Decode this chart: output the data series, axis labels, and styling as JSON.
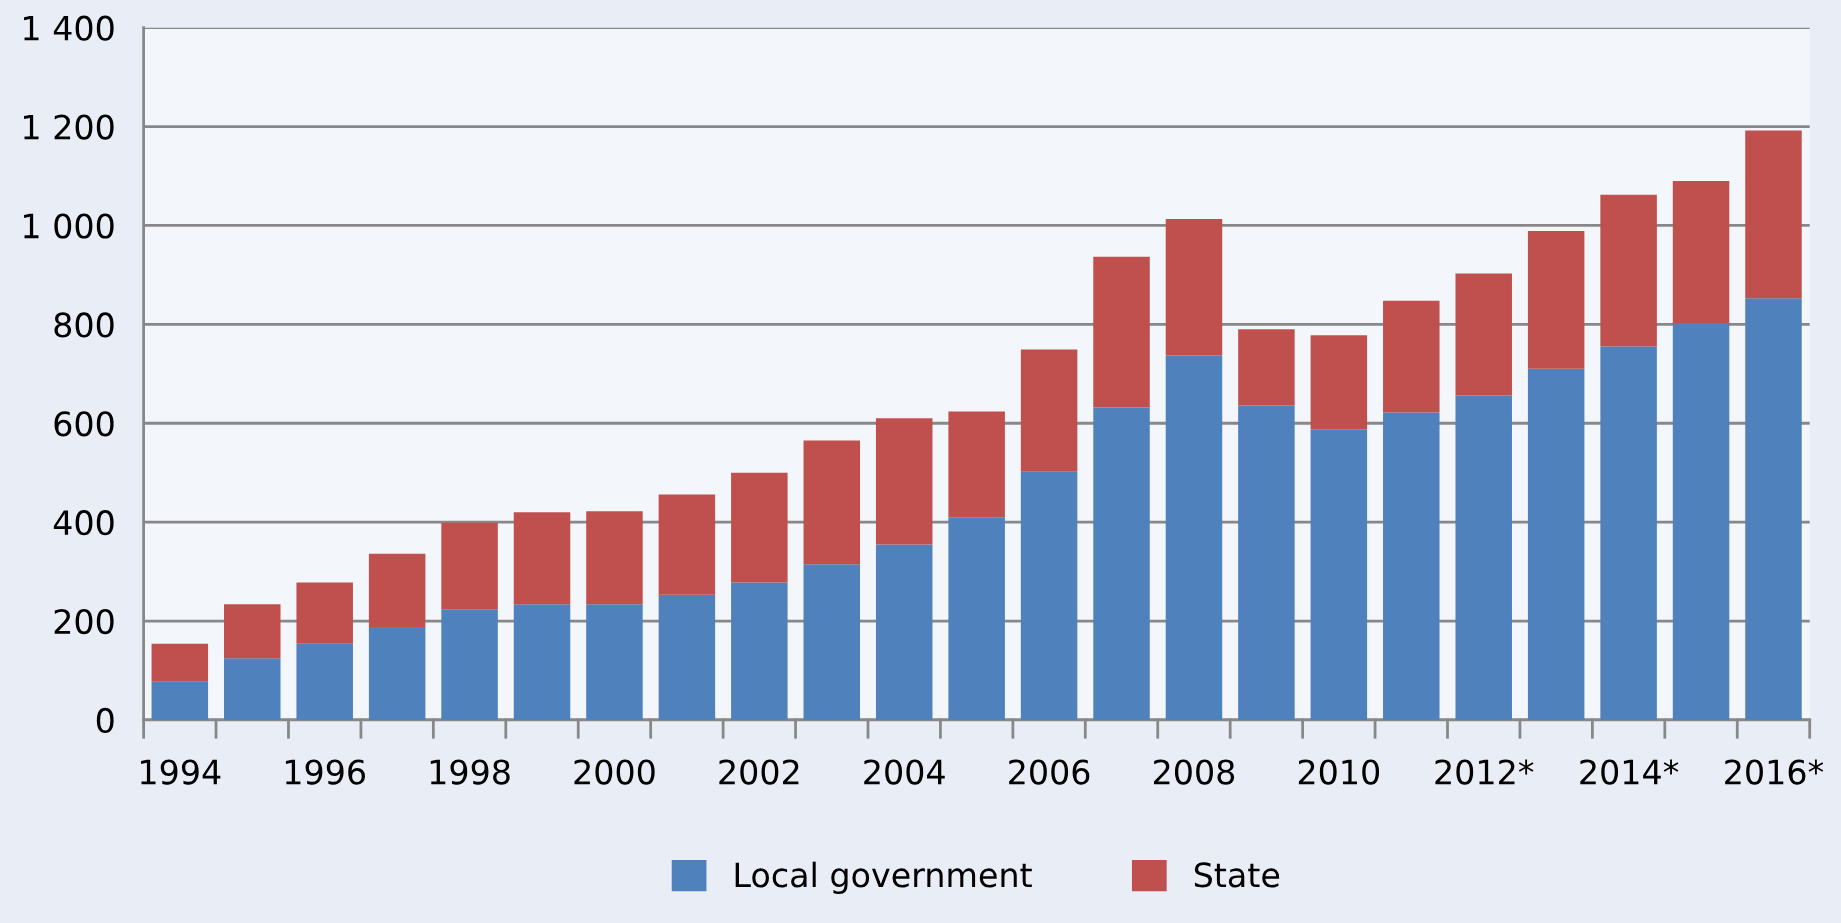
{
  "chart_data": {
    "type": "bar",
    "stacked": true,
    "categories": [
      "1994",
      null,
      "1996",
      null,
      "1998",
      null,
      "2000",
      null,
      "2002",
      null,
      "2004",
      null,
      "2006",
      null,
      "2008",
      null,
      "2010",
      null,
      "2012*",
      null,
      "2014*",
      null,
      "2016*"
    ],
    "series": [
      {
        "name": "Local government",
        "color": "#4f81bd",
        "values": [
          77,
          125,
          154,
          188,
          224,
          234,
          234,
          253,
          278,
          315,
          355,
          410,
          502,
          632,
          737,
          636,
          588,
          622,
          656,
          710,
          755,
          801,
          853
        ]
      },
      {
        "name": "State",
        "color": "#c0504d",
        "values": [
          77,
          109,
          124,
          148,
          175,
          186,
          188,
          203,
          222,
          250,
          255,
          214,
          247,
          305,
          276,
          154,
          190,
          226,
          247,
          279,
          307,
          289,
          339
        ]
      }
    ],
    "ylim": [
      0,
      1400
    ],
    "yticks": [
      0,
      200,
      400,
      600,
      800,
      {
        "value": 1000,
        "label": "1 000"
      },
      {
        "value": 1200,
        "label": "1 200"
      },
      {
        "value": 1400,
        "label": "1 400"
      }
    ],
    "grid": "y",
    "legend": "bottom"
  }
}
